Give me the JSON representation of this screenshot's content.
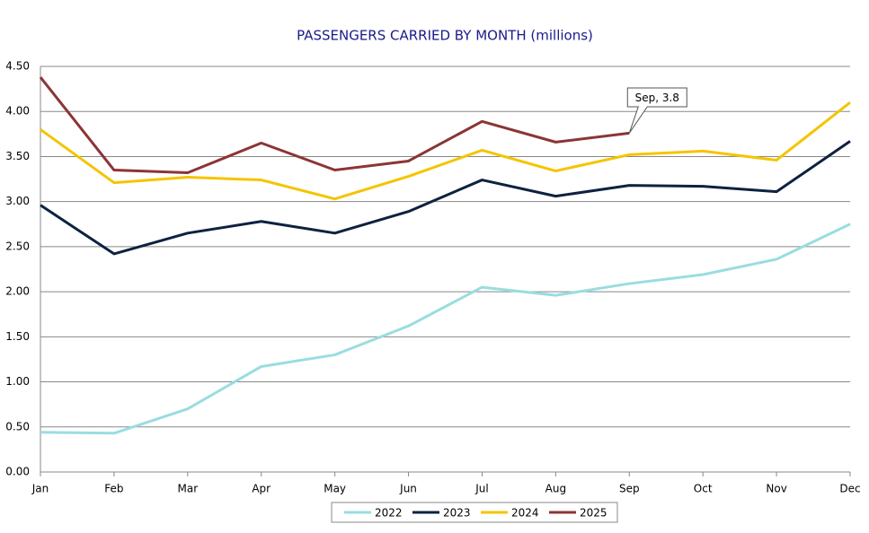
{
  "chart_data": {
    "type": "line",
    "title": "PASSENGERS CARRIED BY MONTH (millions)",
    "categories": [
      "Jan",
      "Feb",
      "Mar",
      "Apr",
      "May",
      "Jun",
      "Jul",
      "Aug",
      "Sep",
      "Oct",
      "Nov",
      "Dec"
    ],
    "series": [
      {
        "name": "2022",
        "color": "#99dde0",
        "values": [
          0.44,
          0.43,
          0.7,
          1.17,
          1.3,
          1.62,
          2.05,
          1.96,
          2.09,
          2.19,
          2.36,
          2.75
        ]
      },
      {
        "name": "2023",
        "color": "#0d2240",
        "values": [
          2.96,
          2.42,
          2.65,
          2.78,
          2.65,
          2.89,
          3.24,
          3.06,
          3.18,
          3.17,
          3.11,
          3.67
        ]
      },
      {
        "name": "2024",
        "color": "#f5c400",
        "values": [
          3.8,
          3.21,
          3.27,
          3.24,
          3.03,
          3.28,
          3.57,
          3.34,
          3.52,
          3.56,
          3.46,
          4.1
        ]
      },
      {
        "name": "2025",
        "color": "#8b3535",
        "values": [
          4.38,
          3.35,
          3.32,
          3.65,
          3.35,
          3.45,
          3.89,
          3.66,
          3.76,
          null,
          null,
          null
        ]
      }
    ],
    "ylim": [
      0,
      4.5
    ],
    "yticks": [
      {
        "value": 0,
        "label": "0.00"
      },
      {
        "value": 0.5,
        "label": "0.50"
      },
      {
        "value": 1,
        "label": "1.00"
      },
      {
        "value": 1.5,
        "label": "1.50"
      },
      {
        "value": 2,
        "label": "2.00"
      },
      {
        "value": 2.5,
        "label": "2.50"
      },
      {
        "value": 3,
        "label": "3.00"
      },
      {
        "value": 3.5,
        "label": "3.50"
      },
      {
        "value": 4,
        "label": "4.00"
      },
      {
        "value": 4.5,
        "label": "4.50"
      }
    ],
    "grid": true,
    "legend": "bottom",
    "annotation": {
      "text": "Sep, 3.8",
      "series": 3,
      "index": 8
    }
  }
}
